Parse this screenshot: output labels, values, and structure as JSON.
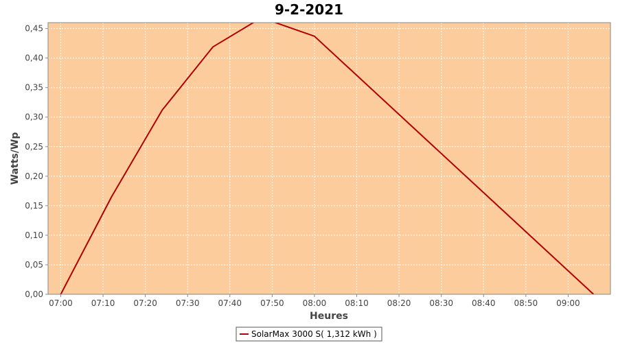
{
  "chart_data": {
    "type": "line",
    "title": "9-2-2021",
    "xlabel": "Heures",
    "ylabel": "Watts/Wp",
    "x_tick_labels": [
      "07:00",
      "07:10",
      "07:20",
      "07:30",
      "07:40",
      "07:50",
      "08:00",
      "08:10",
      "08:20",
      "08:30",
      "08:40",
      "08:50",
      "09:00"
    ],
    "y_tick_labels": [
      "0,00",
      "0,05",
      "0,10",
      "0,15",
      "0,20",
      "0,25",
      "0,30",
      "0,35",
      "0,40",
      "0,45"
    ],
    "xlim": [
      "06:57",
      "09:10"
    ],
    "ylim": [
      0,
      0.46
    ],
    "grid": true,
    "legend_position": "bottom-center",
    "plot_background": "#fccc9c",
    "series": [
      {
        "name": "SolarMax 3000 S( 1,312 kWh )",
        "color": "#b00000",
        "x": [
          "07:00",
          "07:12",
          "07:24",
          "07:36",
          "07:46",
          "07:50",
          "08:00",
          "09:06"
        ],
        "y": [
          0.0,
          0.165,
          0.312,
          0.419,
          0.462,
          0.462,
          0.437,
          0.0
        ]
      }
    ]
  }
}
